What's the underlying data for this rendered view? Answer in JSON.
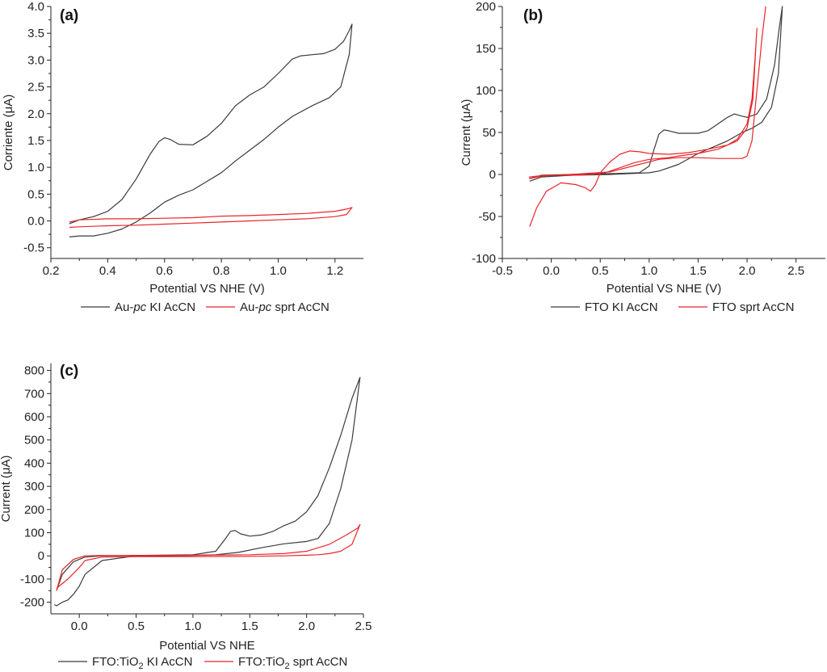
{
  "colors": {
    "ki": "#3b3b3b",
    "sprt": "#e8262b",
    "axis": "#222222"
  },
  "chart_data": [
    {
      "type": "line",
      "panel_label": "(a)",
      "xlabel": "Potential VS NHE (V)",
      "ylabel": "Corriente (μA)",
      "xlim": [
        0.2,
        1.3
      ],
      "ylim": [
        -0.7,
        4.0
      ],
      "xticks": [
        0.2,
        0.4,
        0.6,
        0.8,
        1.0,
        1.2
      ],
      "xtick_labels": [
        "0.2",
        "0.4",
        "0.6",
        "0.8",
        "1.0",
        "1.2"
      ],
      "yticks": [
        -0.5,
        0.0,
        0.5,
        1.0,
        1.5,
        2.0,
        2.5,
        3.0,
        3.5,
        4.0
      ],
      "ytick_labels": [
        "-0.5",
        "0.0",
        "0.5",
        "1.0",
        "1.5",
        "2.0",
        "2.5",
        "3.0",
        "3.5",
        "4.0"
      ],
      "legend": [
        {
          "prefix": "Au-",
          "italic": "pc",
          "suffix": " KI AcCN",
          "series": 0
        },
        {
          "prefix": "Au-",
          "italic": "pc",
          "suffix": " sprt AcCN",
          "series": 1
        }
      ],
      "series": [
        {
          "name": "Au-pc KI AcCN",
          "x": [
            0.265,
            0.3,
            0.35,
            0.4,
            0.45,
            0.5,
            0.55,
            0.58,
            0.6,
            0.62,
            0.65,
            0.7,
            0.75,
            0.8,
            0.85,
            0.9,
            0.95,
            1.0,
            1.05,
            1.08,
            1.12,
            1.16,
            1.2,
            1.23,
            1.25,
            1.26,
            1.25,
            1.22,
            1.18,
            1.12,
            1.05,
            1.0,
            0.95,
            0.9,
            0.85,
            0.8,
            0.7,
            0.65,
            0.6,
            0.55,
            0.5,
            0.45,
            0.4,
            0.35,
            0.3,
            0.265
          ],
          "y": [
            -0.05,
            0.02,
            0.08,
            0.18,
            0.4,
            0.78,
            1.25,
            1.48,
            1.55,
            1.52,
            1.43,
            1.42,
            1.58,
            1.82,
            2.15,
            2.35,
            2.5,
            2.75,
            3.02,
            3.08,
            3.1,
            3.12,
            3.2,
            3.35,
            3.55,
            3.67,
            3.1,
            2.5,
            2.3,
            2.15,
            1.95,
            1.75,
            1.52,
            1.32,
            1.12,
            0.9,
            0.58,
            0.48,
            0.35,
            0.15,
            -0.02,
            -0.15,
            -0.23,
            -0.28,
            -0.28,
            -0.3
          ]
        },
        {
          "name": "Au-pc sprt AcCN",
          "x": [
            0.265,
            0.3,
            0.4,
            0.5,
            0.6,
            0.7,
            0.8,
            0.9,
            1.0,
            1.1,
            1.2,
            1.24,
            1.26,
            1.24,
            1.2,
            1.1,
            1.0,
            0.9,
            0.8,
            0.7,
            0.6,
            0.5,
            0.4,
            0.3,
            0.265
          ],
          "y": [
            -0.02,
            0.02,
            0.04,
            0.04,
            0.05,
            0.06,
            0.09,
            0.1,
            0.12,
            0.14,
            0.18,
            0.22,
            0.25,
            0.12,
            0.08,
            0.04,
            0.02,
            0.0,
            -0.02,
            -0.04,
            -0.06,
            -0.08,
            -0.09,
            -0.11,
            -0.12
          ]
        }
      ]
    },
    {
      "type": "line",
      "panel_label": "(b)",
      "xlabel": "Potential VS NHE (V)",
      "ylabel": "Current (μA)",
      "xlim": [
        -0.5,
        2.8
      ],
      "ylim": [
        -100,
        200
      ],
      "xticks": [
        -0.5,
        0.0,
        0.5,
        1.0,
        1.5,
        2.0,
        2.5
      ],
      "xtick_labels": [
        "-0.5",
        "0.0",
        "0.5",
        "1.0",
        "1.5",
        "2.0",
        "2.5"
      ],
      "yticks": [
        -100,
        -50,
        0,
        50,
        100,
        150,
        200
      ],
      "ytick_labels": [
        "-100",
        "-50",
        "0",
        "50",
        "100",
        "150",
        "200"
      ],
      "legend": [
        {
          "prefix": "FTO KI AcCN",
          "series": 0
        },
        {
          "prefix": "FTO sprt AcCN",
          "series": 1
        }
      ],
      "series": [
        {
          "name": "FTO KI AcCN",
          "x": [
            -0.22,
            -0.1,
            0.2,
            0.6,
            0.9,
            1.0,
            1.05,
            1.1,
            1.15,
            1.2,
            1.3,
            1.5,
            1.6,
            1.7,
            1.8,
            1.87,
            1.93,
            2.0,
            2.1,
            2.2,
            2.28,
            2.33,
            2.36,
            2.32,
            2.25,
            2.15,
            2.05,
            1.95,
            1.8,
            1.5,
            1.3,
            1.1,
            1.0,
            0.6,
            0.2,
            -0.1,
            -0.22
          ],
          "y": [
            -5,
            -1,
            0,
            1,
            2,
            10,
            30,
            48,
            53,
            52,
            49,
            49,
            52,
            60,
            68,
            72,
            70,
            68,
            72,
            90,
            130,
            175,
            200,
            120,
            80,
            62,
            55,
            50,
            40,
            25,
            12,
            4,
            2,
            0,
            -1,
            -3,
            -8
          ]
        },
        {
          "name": "FTO sprt AcCN",
          "x": [
            -0.22,
            -0.15,
            -0.05,
            0.1,
            0.25,
            0.35,
            0.4,
            0.45,
            0.5,
            0.6,
            0.7,
            0.8,
            0.9,
            1.0,
            1.2,
            1.4,
            1.6,
            1.8,
            1.9,
            2.0,
            2.05,
            2.08,
            2.1,
            2.06,
            2.0,
            1.9,
            1.7,
            1.5,
            1.3,
            1.2,
            1.0,
            0.85,
            0.7,
            0.55,
            0.4,
            0.2,
            0.0,
            -0.15,
            -0.22,
            -0.22,
            -0.1,
            0.2,
            0.6,
            0.9,
            1.1,
            1.3,
            1.5,
            1.7,
            1.85,
            1.95,
            2.0,
            2.05,
            2.1,
            2.15,
            2.19
          ],
          "y": [
            -62,
            -40,
            -20,
            -10,
            -12,
            -16,
            -20,
            -12,
            2,
            15,
            24,
            28,
            27,
            25,
            24,
            26,
            30,
            35,
            42,
            60,
            90,
            135,
            174,
            90,
            55,
            40,
            30,
            25,
            22,
            20,
            18,
            14,
            8,
            2,
            0,
            -1,
            -1,
            -2,
            -3,
            -5,
            -2,
            0,
            3,
            12,
            18,
            20,
            20,
            19,
            19,
            19,
            22,
            40,
            100,
            160,
            200
          ]
        }
      ]
    },
    {
      "type": "line",
      "panel_label": "(c)",
      "xlabel": "Potential VS NHE",
      "ylabel": "Current (μA)",
      "xlim": [
        -0.25,
        2.5
      ],
      "ylim": [
        -250,
        830
      ],
      "xticks": [
        0.0,
        0.5,
        1.0,
        1.5,
        2.0,
        2.5
      ],
      "xtick_labels": [
        "0.0",
        "0.5",
        "1.0",
        "1.5",
        "2.0",
        "2.5"
      ],
      "yticks": [
        -200,
        -100,
        0,
        100,
        200,
        300,
        400,
        500,
        600,
        700,
        800
      ],
      "ytick_labels": [
        "-200",
        "-100",
        "0",
        "100",
        "200",
        "300",
        "400",
        "500",
        "600",
        "700",
        "800"
      ],
      "legend": [
        {
          "prefix": "FTO:TiO",
          "sub": "2",
          "suffix": " KI AcCN",
          "series": 0
        },
        {
          "prefix": "FTO:TiO",
          "sub": "2",
          "suffix": " sprt AcCN",
          "series": 1
        }
      ],
      "series": [
        {
          "name": "FTO:TiO2 KI AcCN",
          "x": [
            -0.2,
            -0.15,
            -0.05,
            0.05,
            0.2,
            0.5,
            1.0,
            1.2,
            1.28,
            1.33,
            1.37,
            1.42,
            1.5,
            1.6,
            1.7,
            1.8,
            1.9,
            2.0,
            2.1,
            2.2,
            2.3,
            2.4,
            2.47,
            2.4,
            2.3,
            2.2,
            2.1,
            2.0,
            1.8,
            1.6,
            1.4,
            1.2,
            1.0,
            0.5,
            0.2,
            0.05,
            0.0,
            -0.05,
            -0.1,
            -0.15,
            -0.2,
            -0.22
          ],
          "y": [
            -150,
            -80,
            -25,
            -5,
            0,
            2,
            5,
            20,
            70,
            105,
            110,
            95,
            85,
            90,
            105,
            130,
            150,
            190,
            260,
            380,
            520,
            680,
            770,
            500,
            290,
            140,
            75,
            62,
            52,
            35,
            15,
            5,
            2,
            0,
            -20,
            -80,
            -130,
            -165,
            -190,
            -200,
            -215,
            -210
          ]
        },
        {
          "name": "FTO:TiO2 sprt AcCN",
          "x": [
            -0.2,
            -0.15,
            -0.05,
            0.05,
            0.2,
            0.5,
            1.0,
            1.5,
            1.8,
            2.0,
            2.2,
            2.35,
            2.45,
            2.47,
            2.4,
            2.3,
            2.2,
            2.1,
            2.0,
            1.8,
            1.5,
            1.0,
            0.5,
            0.2,
            0.05,
            0.0,
            -0.1,
            -0.2
          ],
          "y": [
            -150,
            -60,
            -15,
            0,
            2,
            2,
            3,
            5,
            10,
            20,
            50,
            90,
            120,
            135,
            50,
            20,
            10,
            5,
            3,
            0,
            -2,
            -3,
            -3,
            -5,
            -20,
            -50,
            -100,
            -140
          ]
        }
      ]
    }
  ]
}
